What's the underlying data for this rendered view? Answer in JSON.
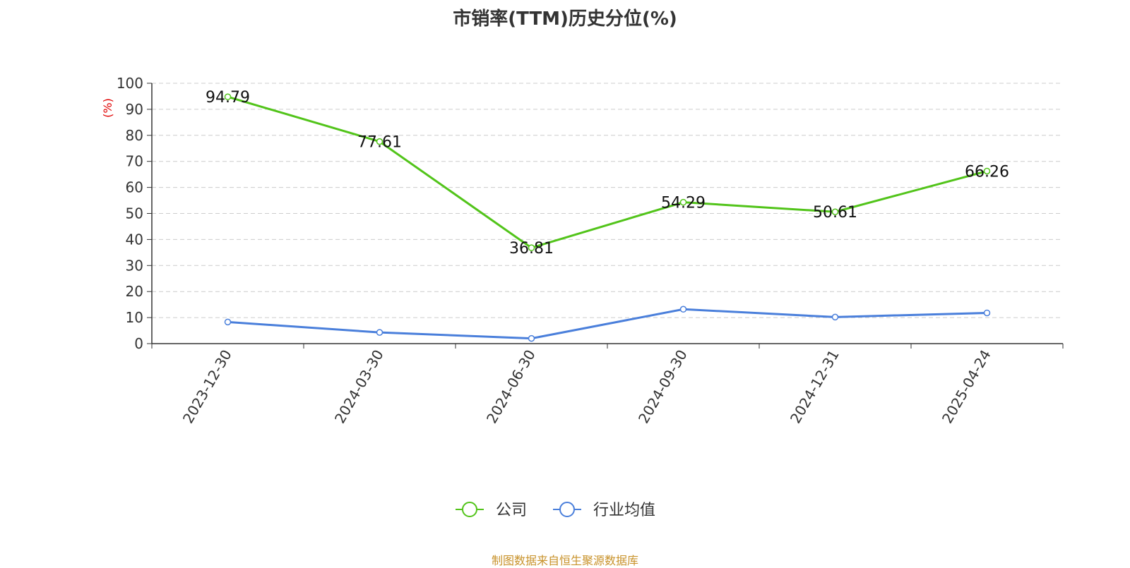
{
  "title": "市销率(TTM)历史分位(%)",
  "source": "制图数据来自恒生聚源数据库",
  "colors": {
    "company": "#52c41a",
    "industry": "#4a7fdb",
    "unit": "#e00000"
  },
  "chart_data": {
    "type": "line",
    "title": "市销率(TTM)历史分位(%)",
    "ylabel": "(%)",
    "ylim": [
      0,
      100
    ],
    "yticks": [
      0,
      10,
      20,
      30,
      40,
      50,
      60,
      70,
      80,
      90,
      100
    ],
    "grid": true,
    "legend": "bottom-center",
    "categories": [
      "2023-12-30",
      "2024-03-30",
      "2024-06-30",
      "2024-09-30",
      "2024-12-31",
      "2025-04-24"
    ],
    "series": [
      {
        "name": "公司",
        "values": [
          94.79,
          77.61,
          36.81,
          54.29,
          50.61,
          66.26
        ],
        "labels": [
          "94.79",
          "77.61",
          "36.81",
          "54.29",
          "50.61",
          "66.26"
        ]
      },
      {
        "name": "行业均值",
        "values": [
          8.3,
          4.3,
          2.0,
          13.2,
          10.2,
          11.8
        ]
      }
    ]
  }
}
